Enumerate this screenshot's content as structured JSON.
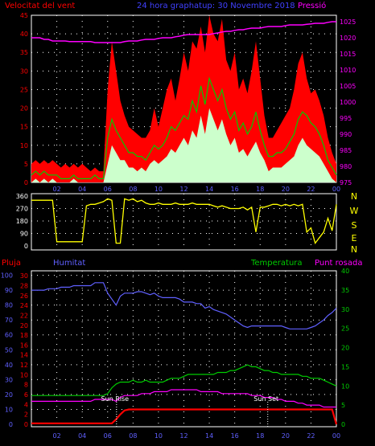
{
  "header": {
    "wind_label": "Velocitat del vent",
    "title": "24 hora graphatup: 30 Novembre 2018",
    "pressure_label": "Pressió"
  },
  "bottom_header": {
    "rain_label": "Pluja",
    "humidity_label": "Humitat",
    "temperature_label": "Temperatura",
    "dewpoint_label": "Punt rosada"
  },
  "colors": {
    "gust": "#ff0000",
    "wind_avg": "#00cc00",
    "wind_min": "#ccffcc",
    "pressure": "#ff00ff",
    "direction": "#ffff00",
    "humidity": "#6060ff",
    "temperature": "#00cc00",
    "dewpoint": "#ff00ff",
    "rain": "#ff0000",
    "axis_left": "#ff0000",
    "axis_right": "#ff00ff",
    "axis_blue": "#6060ff",
    "axis_green": "#00cc00",
    "grid": "#ffffff"
  },
  "chart_data": [
    {
      "type": "area",
      "name": "wind",
      "x_ticks": [
        "02",
        "04",
        "06",
        "08",
        "10",
        "12",
        "14",
        "16",
        "18",
        "20",
        "22",
        "00"
      ],
      "y_ticks": [
        0,
        5,
        10,
        15,
        20,
        25,
        30,
        35,
        40,
        45
      ],
      "ylim": [
        0,
        45
      ],
      "y2_ticks": [
        975,
        980,
        985,
        990,
        995,
        1000,
        1005,
        1010,
        1015,
        1020,
        1025
      ],
      "y2lim": [
        975,
        1027
      ],
      "series": [
        {
          "name": "gust",
          "values": [
            5,
            6,
            5,
            6,
            5,
            6,
            5,
            4,
            5,
            4,
            5,
            4,
            5,
            4,
            3,
            4,
            3,
            3,
            25,
            38,
            30,
            22,
            18,
            15,
            14,
            13,
            12,
            12,
            14,
            20,
            15,
            20,
            25,
            28,
            22,
            28,
            35,
            30,
            38,
            36,
            42,
            35,
            45,
            40,
            38,
            44,
            33,
            30,
            35,
            25,
            28,
            24,
            30,
            38,
            28,
            18,
            12,
            12,
            14,
            16,
            18,
            20,
            25,
            32,
            35,
            28,
            24,
            25,
            22,
            18,
            12,
            8,
            5
          ]
        },
        {
          "name": "wind_avg",
          "values": [
            2,
            3,
            2,
            3,
            2,
            2,
            2,
            1,
            1,
            1,
            2,
            1,
            1,
            1,
            1,
            2,
            1,
            1,
            12,
            17,
            14,
            12,
            10,
            8,
            8,
            7,
            7,
            6,
            8,
            10,
            9,
            10,
            12,
            15,
            14,
            16,
            18,
            17,
            22,
            19,
            26,
            21,
            28,
            25,
            22,
            25,
            20,
            17,
            19,
            14,
            16,
            13,
            15,
            19,
            14,
            10,
            7,
            7,
            8,
            8,
            9,
            11,
            13,
            17,
            19,
            18,
            16,
            15,
            13,
            10,
            6,
            4,
            2
          ]
        },
        {
          "name": "wind_min",
          "values": [
            0,
            1,
            0,
            1,
            0,
            1,
            0,
            0,
            0,
            0,
            1,
            0,
            0,
            0,
            0,
            0,
            0,
            0,
            5,
            10,
            8,
            6,
            6,
            4,
            4,
            3,
            4,
            3,
            5,
            6,
            5,
            6,
            7,
            9,
            8,
            10,
            12,
            10,
            14,
            12,
            18,
            13,
            20,
            17,
            14,
            17,
            13,
            10,
            12,
            8,
            9,
            7,
            9,
            11,
            8,
            6,
            3,
            4,
            4,
            4,
            5,
            6,
            7,
            10,
            12,
            10,
            9,
            8,
            7,
            5,
            3,
            1,
            0
          ]
        },
        {
          "name": "pressure",
          "values": [
            1020,
            1020,
            1020,
            1019.5,
            1019.5,
            1019,
            1019,
            1019,
            1019,
            1018.8,
            1018.8,
            1018.8,
            1018.8,
            1018.8,
            1018.8,
            1018.5,
            1018.5,
            1018.5,
            1018.5,
            1018.5,
            1018.5,
            1018.5,
            1018.8,
            1019,
            1019,
            1019,
            1019.3,
            1019.5,
            1019.5,
            1019.5,
            1019.8,
            1020,
            1020,
            1020,
            1020.3,
            1020.5,
            1020.8,
            1021,
            1021,
            1021,
            1021,
            1021,
            1021,
            1021.3,
            1021.5,
            1021.8,
            1022,
            1022,
            1022.3,
            1022.5,
            1022.5,
            1022.8,
            1023,
            1023,
            1023,
            1023.3,
            1023.5,
            1023.5,
            1023.5,
            1023.5,
            1023.8,
            1024,
            1024,
            1024,
            1024,
            1024.2,
            1024.3,
            1024.5,
            1024.5,
            1024.5,
            1024.8,
            1025,
            1025
          ]
        }
      ]
    },
    {
      "type": "line",
      "name": "wind_direction",
      "labels_right": [
        "N",
        "W",
        "S",
        "E",
        "N"
      ],
      "y_ticks": [
        0,
        90,
        180,
        270,
        360
      ],
      "ylim": [
        0,
        360
      ],
      "series": [
        {
          "name": "direction",
          "values": [
            330,
            330,
            330,
            330,
            330,
            330,
            30,
            30,
            30,
            30,
            30,
            30,
            30,
            290,
            300,
            300,
            310,
            320,
            340,
            330,
            20,
            20,
            340,
            330,
            340,
            320,
            330,
            310,
            300,
            300,
            310,
            300,
            300,
            300,
            310,
            300,
            300,
            300,
            310,
            300,
            300,
            300,
            300,
            290,
            280,
            290,
            280,
            270,
            270,
            270,
            280,
            260,
            280,
            100,
            280,
            280,
            290,
            300,
            300,
            290,
            300,
            290,
            300,
            290,
            300,
            100,
            130,
            20,
            60,
            100,
            200,
            110,
            300
          ]
        }
      ]
    },
    {
      "type": "line",
      "name": "humidity_temperature",
      "y_ticks_rain": [
        0,
        2,
        4,
        6,
        8,
        10,
        12,
        14,
        16,
        18,
        20,
        22,
        24,
        26,
        28,
        30
      ],
      "y_ticks_humidity": [
        0,
        10,
        20,
        30,
        40,
        50,
        60,
        70,
        80,
        90,
        100
      ],
      "ylim_humidity": [
        0,
        103
      ],
      "y2_ticks": [
        0,
        5,
        10,
        15,
        20,
        25,
        30,
        35,
        40
      ],
      "y2lim": [
        0,
        40
      ],
      "annotations": [
        "Sun Rise",
        "Sun Set"
      ],
      "series": [
        {
          "name": "humidity",
          "values": [
            90,
            90,
            90,
            90,
            91,
            91,
            91,
            92,
            92,
            92,
            93,
            93,
            93,
            93,
            93,
            95,
            95,
            95,
            88,
            84,
            80,
            86,
            88,
            88,
            88,
            89,
            89,
            88,
            87,
            88,
            86,
            85,
            85,
            85,
            85,
            84,
            82,
            82,
            82,
            81,
            81,
            78,
            79,
            77,
            76,
            75,
            74,
            72,
            70,
            68,
            66,
            65,
            66,
            66,
            66,
            66,
            66,
            66,
            66,
            66,
            65,
            64,
            64,
            64,
            64,
            64,
            65,
            66,
            68,
            70,
            73,
            75,
            78
          ]
        },
        {
          "name": "temperature",
          "values": [
            7.5,
            7.5,
            7.5,
            7.5,
            7.5,
            7.5,
            7.5,
            7.5,
            7.5,
            7.5,
            7.5,
            7.5,
            7.5,
            7.5,
            7.5,
            7.5,
            7.5,
            7.5,
            8,
            9.5,
            10.5,
            11,
            11,
            11,
            11.5,
            11,
            11,
            11.5,
            11,
            11,
            11,
            11,
            11.5,
            12,
            12,
            12,
            12.5,
            13,
            13,
            13,
            13,
            13,
            13,
            13,
            13.5,
            13.5,
            13.5,
            14,
            14,
            14.5,
            15,
            15.5,
            15,
            15,
            14.5,
            14,
            14,
            13.5,
            13.5,
            13,
            13,
            13,
            13,
            13,
            12.5,
            12.5,
            12,
            12,
            12,
            11.5,
            11,
            10.5,
            10
          ]
        },
        {
          "name": "dewpoint",
          "values": [
            6,
            6,
            6,
            6,
            6,
            6,
            6,
            6,
            6,
            6,
            6,
            6,
            6,
            6,
            6,
            6.5,
            6.5,
            6.5,
            6.5,
            6.5,
            6,
            7,
            7.5,
            7.5,
            7.5,
            7.5,
            8,
            8,
            8,
            8.5,
            8.5,
            8.5,
            8.5,
            9,
            9,
            9,
            9,
            9,
            9,
            9,
            8.5,
            8.5,
            8.5,
            8.5,
            8.5,
            8,
            8,
            8,
            8,
            8,
            8,
            8,
            7.5,
            7.5,
            7.5,
            7,
            7,
            7,
            6.5,
            6.5,
            6,
            6,
            6,
            5.5,
            5.5,
            5,
            5,
            5,
            5,
            4.5,
            4.5,
            4.5,
            4.5
          ]
        },
        {
          "name": "rain",
          "values": [
            0.2,
            0.2,
            0.2,
            0.2,
            0.2,
            0.2,
            0.2,
            0.2,
            0.2,
            0.2,
            0.2,
            0.2,
            0.2,
            0.2,
            0.2,
            0.2,
            0.2,
            0.2,
            0.2,
            0.2,
            1,
            2,
            2.8,
            3,
            3,
            3,
            3,
            3,
            3,
            3,
            3,
            3,
            3,
            3,
            3,
            3,
            3,
            3,
            3,
            3,
            3,
            3,
            3,
            3,
            3,
            3,
            3,
            3,
            3,
            3,
            3,
            3,
            3,
            3,
            3,
            3,
            3,
            3,
            3,
            3,
            3,
            3,
            3,
            3,
            3,
            3,
            3,
            3,
            3,
            3,
            3,
            3,
            0
          ]
        }
      ]
    }
  ]
}
